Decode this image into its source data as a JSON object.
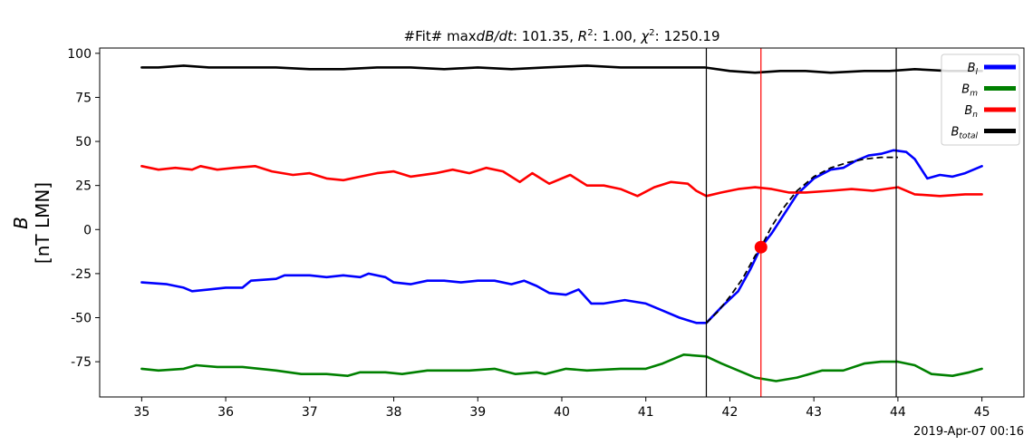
{
  "chart_data": {
    "type": "line",
    "title": "#Fit# maxdB/dt: 101.35, R²: 1.00, χ²: 1250.19",
    "title_parts": {
      "prefix": "#Fit# max",
      "dbdt": "dB/dt",
      "dbdt_value": ": 101.35, ",
      "r": "R",
      "r_sup": "2",
      "r_value": ": 1.00, ",
      "chi": "χ",
      "chi_sup": "2",
      "chi_value": ": 1250.19"
    },
    "ylabel_symbol": "B",
    "ylabel_unit": "[nT LMN]",
    "corner_label": "2019-Apr-07 00:16",
    "xlim": [
      34.5,
      45.5
    ],
    "ylim": [
      -95,
      103
    ],
    "xticks": [
      35,
      36,
      37,
      38,
      39,
      40,
      41,
      42,
      43,
      44,
      45
    ],
    "yticks": [
      -75,
      -50,
      -25,
      0,
      25,
      50,
      75,
      100
    ],
    "grid": false,
    "legend_position": "top-right",
    "series": [
      {
        "name": "B_l",
        "label_main": "B",
        "label_sub": "l",
        "color": "#0000ff",
        "points": [
          [
            35.0,
            -30
          ],
          [
            35.3,
            -31
          ],
          [
            35.5,
            -33
          ],
          [
            35.6,
            -35
          ],
          [
            35.8,
            -34
          ],
          [
            36.0,
            -33
          ],
          [
            36.2,
            -33
          ],
          [
            36.3,
            -29
          ],
          [
            36.6,
            -28
          ],
          [
            36.7,
            -26
          ],
          [
            37.0,
            -26
          ],
          [
            37.2,
            -27
          ],
          [
            37.4,
            -26
          ],
          [
            37.6,
            -27
          ],
          [
            37.7,
            -25
          ],
          [
            37.9,
            -27
          ],
          [
            38.0,
            -30
          ],
          [
            38.2,
            -31
          ],
          [
            38.4,
            -29
          ],
          [
            38.6,
            -29
          ],
          [
            38.8,
            -30
          ],
          [
            39.0,
            -29
          ],
          [
            39.2,
            -29
          ],
          [
            39.4,
            -31
          ],
          [
            39.55,
            -29
          ],
          [
            39.7,
            -32
          ],
          [
            39.85,
            -36
          ],
          [
            40.05,
            -37
          ],
          [
            40.2,
            -34
          ],
          [
            40.35,
            -42
          ],
          [
            40.5,
            -42
          ],
          [
            40.75,
            -40
          ],
          [
            41.0,
            -42
          ],
          [
            41.2,
            -46
          ],
          [
            41.4,
            -50
          ],
          [
            41.6,
            -53
          ],
          [
            41.72,
            -53
          ],
          [
            41.9,
            -44
          ],
          [
            42.1,
            -35
          ],
          [
            42.25,
            -22
          ],
          [
            42.37,
            -10
          ],
          [
            42.5,
            -2
          ],
          [
            42.65,
            9
          ],
          [
            42.8,
            20
          ],
          [
            43.0,
            29
          ],
          [
            43.2,
            34
          ],
          [
            43.35,
            35
          ],
          [
            43.5,
            39
          ],
          [
            43.65,
            42
          ],
          [
            43.8,
            43
          ],
          [
            43.95,
            45
          ],
          [
            44.1,
            44
          ],
          [
            44.2,
            40
          ],
          [
            44.35,
            29
          ],
          [
            44.5,
            31
          ],
          [
            44.65,
            30
          ],
          [
            44.8,
            32
          ],
          [
            45.0,
            36
          ]
        ]
      },
      {
        "name": "B_m",
        "label_main": "B",
        "label_sub": "m",
        "color": "#008000",
        "points": [
          [
            35.0,
            -79
          ],
          [
            35.2,
            -80
          ],
          [
            35.5,
            -79
          ],
          [
            35.65,
            -77
          ],
          [
            35.9,
            -78
          ],
          [
            36.2,
            -78
          ],
          [
            36.6,
            -80
          ],
          [
            36.9,
            -82
          ],
          [
            37.2,
            -82
          ],
          [
            37.45,
            -83
          ],
          [
            37.6,
            -81
          ],
          [
            37.9,
            -81
          ],
          [
            38.1,
            -82
          ],
          [
            38.4,
            -80
          ],
          [
            38.7,
            -80
          ],
          [
            38.9,
            -80
          ],
          [
            39.2,
            -79
          ],
          [
            39.45,
            -82
          ],
          [
            39.7,
            -81
          ],
          [
            39.8,
            -82
          ],
          [
            40.05,
            -79
          ],
          [
            40.3,
            -80
          ],
          [
            40.7,
            -79
          ],
          [
            41.0,
            -79
          ],
          [
            41.2,
            -76
          ],
          [
            41.45,
            -71
          ],
          [
            41.72,
            -72
          ],
          [
            41.9,
            -76
          ],
          [
            42.1,
            -80
          ],
          [
            42.3,
            -84
          ],
          [
            42.55,
            -86
          ],
          [
            42.8,
            -84
          ],
          [
            43.1,
            -80
          ],
          [
            43.35,
            -80
          ],
          [
            43.6,
            -76
          ],
          [
            43.8,
            -75
          ],
          [
            44.0,
            -75
          ],
          [
            44.2,
            -77
          ],
          [
            44.4,
            -82
          ],
          [
            44.65,
            -83
          ],
          [
            44.85,
            -81
          ],
          [
            45.0,
            -79
          ]
        ]
      },
      {
        "name": "B_n",
        "label_main": "B",
        "label_sub": "n",
        "color": "#ff0000",
        "points": [
          [
            35.0,
            36
          ],
          [
            35.2,
            34
          ],
          [
            35.4,
            35
          ],
          [
            35.6,
            34
          ],
          [
            35.7,
            36
          ],
          [
            35.9,
            34
          ],
          [
            36.1,
            35
          ],
          [
            36.35,
            36
          ],
          [
            36.55,
            33
          ],
          [
            36.8,
            31
          ],
          [
            37.0,
            32
          ],
          [
            37.2,
            29
          ],
          [
            37.4,
            28
          ],
          [
            37.6,
            30
          ],
          [
            37.8,
            32
          ],
          [
            38.0,
            33
          ],
          [
            38.2,
            30
          ],
          [
            38.5,
            32
          ],
          [
            38.7,
            34
          ],
          [
            38.9,
            32
          ],
          [
            39.1,
            35
          ],
          [
            39.3,
            33
          ],
          [
            39.5,
            27
          ],
          [
            39.65,
            32
          ],
          [
            39.85,
            26
          ],
          [
            40.1,
            31
          ],
          [
            40.3,
            25
          ],
          [
            40.5,
            25
          ],
          [
            40.7,
            23
          ],
          [
            40.9,
            19
          ],
          [
            41.1,
            24
          ],
          [
            41.3,
            27
          ],
          [
            41.5,
            26
          ],
          [
            41.6,
            22
          ],
          [
            41.72,
            19
          ],
          [
            41.9,
            21
          ],
          [
            42.1,
            23
          ],
          [
            42.3,
            24
          ],
          [
            42.5,
            23
          ],
          [
            42.7,
            21
          ],
          [
            42.9,
            21
          ],
          [
            43.2,
            22
          ],
          [
            43.45,
            23
          ],
          [
            43.7,
            22
          ],
          [
            44.0,
            24
          ],
          [
            44.2,
            20
          ],
          [
            44.5,
            19
          ],
          [
            44.8,
            20
          ],
          [
            45.0,
            20
          ]
        ]
      },
      {
        "name": "B_total",
        "label_main": "B",
        "label_sub": "total",
        "color": "#000000",
        "points": [
          [
            35.0,
            92
          ],
          [
            35.2,
            92
          ],
          [
            35.5,
            93
          ],
          [
            35.8,
            92
          ],
          [
            36.2,
            92
          ],
          [
            36.6,
            92
          ],
          [
            37.0,
            91
          ],
          [
            37.4,
            91
          ],
          [
            37.8,
            92
          ],
          [
            38.2,
            92
          ],
          [
            38.6,
            91
          ],
          [
            39.0,
            92
          ],
          [
            39.4,
            91
          ],
          [
            39.8,
            92
          ],
          [
            40.3,
            93
          ],
          [
            40.7,
            92
          ],
          [
            41.0,
            92
          ],
          [
            41.3,
            92
          ],
          [
            41.7,
            92
          ],
          [
            42.0,
            90
          ],
          [
            42.3,
            89
          ],
          [
            42.6,
            90
          ],
          [
            42.9,
            90
          ],
          [
            43.2,
            89
          ],
          [
            43.6,
            90
          ],
          [
            43.9,
            90
          ],
          [
            44.2,
            91
          ],
          [
            44.6,
            90
          ],
          [
            45.0,
            90
          ]
        ]
      }
    ],
    "fit_curve": {
      "style": "dashed",
      "color": "#000000",
      "points": [
        [
          41.72,
          -53
        ],
        [
          41.85,
          -47
        ],
        [
          42.0,
          -38
        ],
        [
          42.15,
          -28
        ],
        [
          42.3,
          -15
        ],
        [
          42.37,
          -10
        ],
        [
          42.5,
          2
        ],
        [
          42.65,
          13
        ],
        [
          42.8,
          22
        ],
        [
          43.0,
          30
        ],
        [
          43.2,
          35
        ],
        [
          43.4,
          38
        ],
        [
          43.6,
          40
        ],
        [
          43.8,
          41
        ],
        [
          44.0,
          41
        ]
      ]
    },
    "vertical_lines": [
      {
        "x": 41.72,
        "color": "#000000"
      },
      {
        "x": 42.37,
        "color": "#ff0000"
      },
      {
        "x": 43.98,
        "color": "#000000"
      }
    ],
    "marker": {
      "x": 42.37,
      "y": -10,
      "color": "#ff0000"
    }
  }
}
